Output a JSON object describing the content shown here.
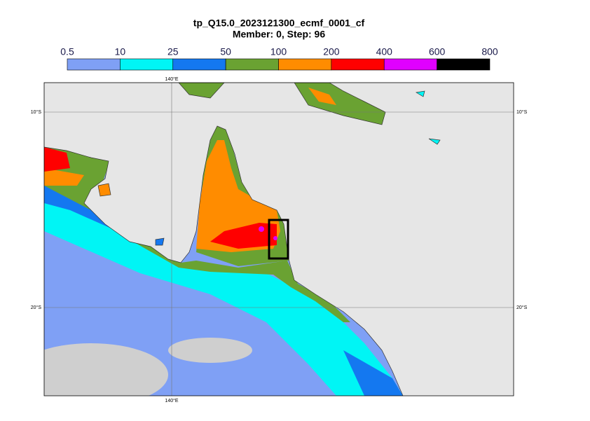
{
  "title": "tp_Q15.0_2023121300_ecmf_0001_cf",
  "subtitle": "Member: 0, Step: 96",
  "colorbar": {
    "levels": [
      0.5,
      10,
      25,
      50,
      100,
      200,
      400,
      600,
      800
    ],
    "colors": [
      "#7fa0f5",
      "#00f5f5",
      "#1478f0",
      "#6aa232",
      "#ff8c00",
      "#ff0000",
      "#e000ff",
      "#000000"
    ]
  },
  "gridlines": {
    "lon_labels": [
      "140°E"
    ],
    "lat_labels": [
      "10°S",
      "20°S"
    ]
  }
}
